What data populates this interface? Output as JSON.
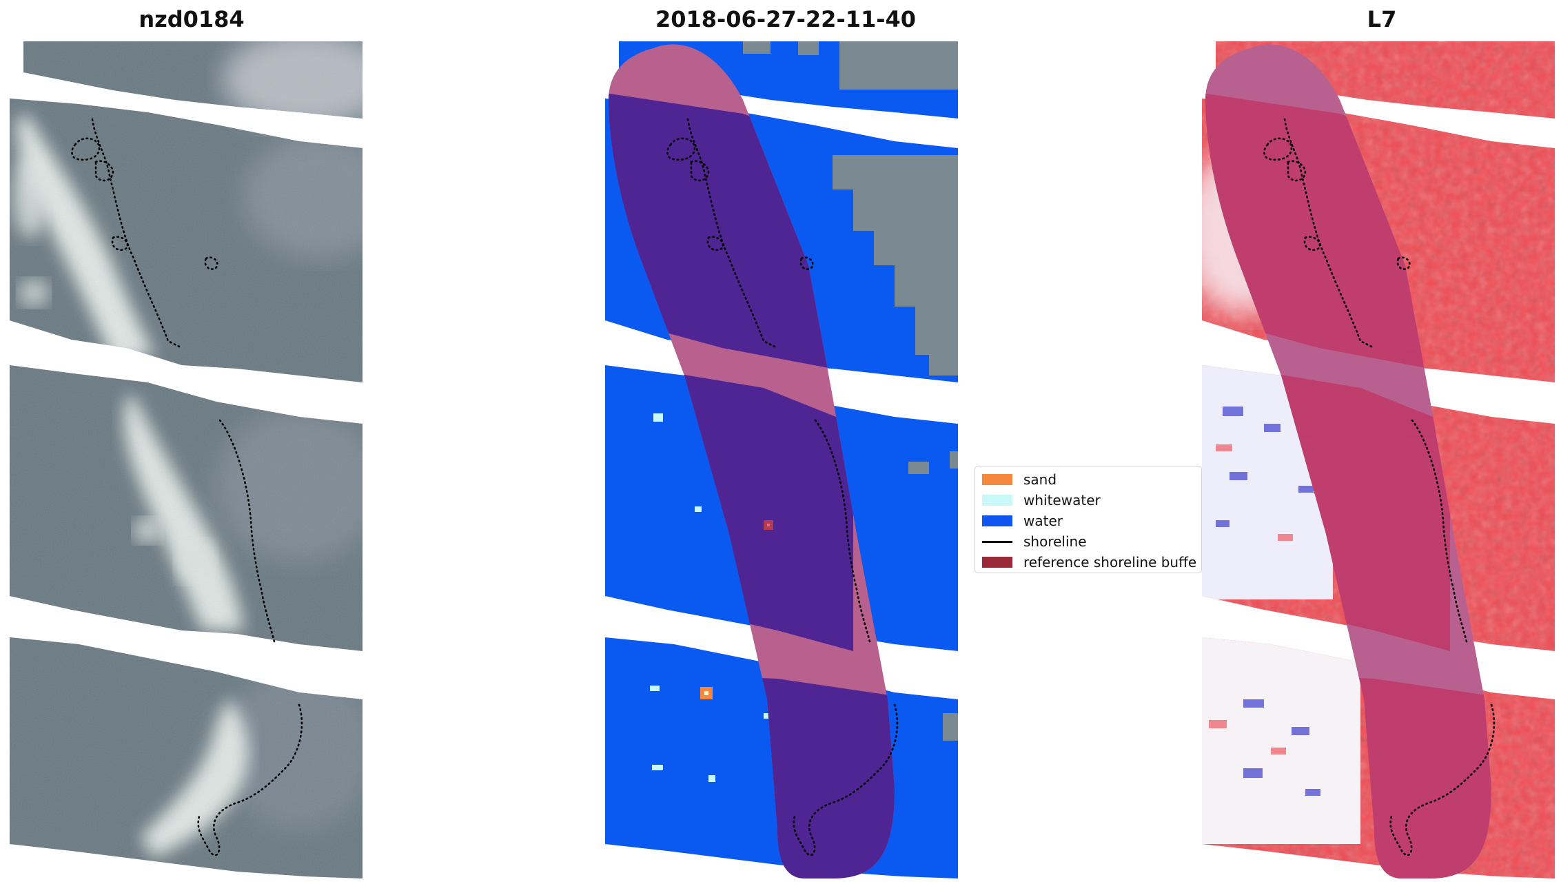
{
  "panels": [
    {
      "title": "nzd0184"
    },
    {
      "title": "2018-06-27-22-11-40"
    },
    {
      "title": "L7"
    }
  ],
  "legend": {
    "items": [
      {
        "label": "sand",
        "color": "#f5883c",
        "kind": "patch"
      },
      {
        "label": "whitewater",
        "color": "#c8f8f8",
        "kind": "patch"
      },
      {
        "label": "water",
        "color": "#1055f0",
        "kind": "patch"
      },
      {
        "label": "shoreline",
        "color": "#000000",
        "kind": "line"
      },
      {
        "label": "reference shoreline buffe",
        "color": "#9a2a3a",
        "kind": "patch"
      }
    ]
  },
  "colors": {
    "rgb_water": "#5c7178",
    "rgb_surf": "#e6ece8",
    "class_water": "#0a5af2",
    "buffer_overlay_dark": "#4e2593",
    "buffer_overlay_light": "#b86090",
    "index_positive": "#f24a52",
    "index_negative": "#2626c8",
    "index_buffer": "#b84a78"
  }
}
